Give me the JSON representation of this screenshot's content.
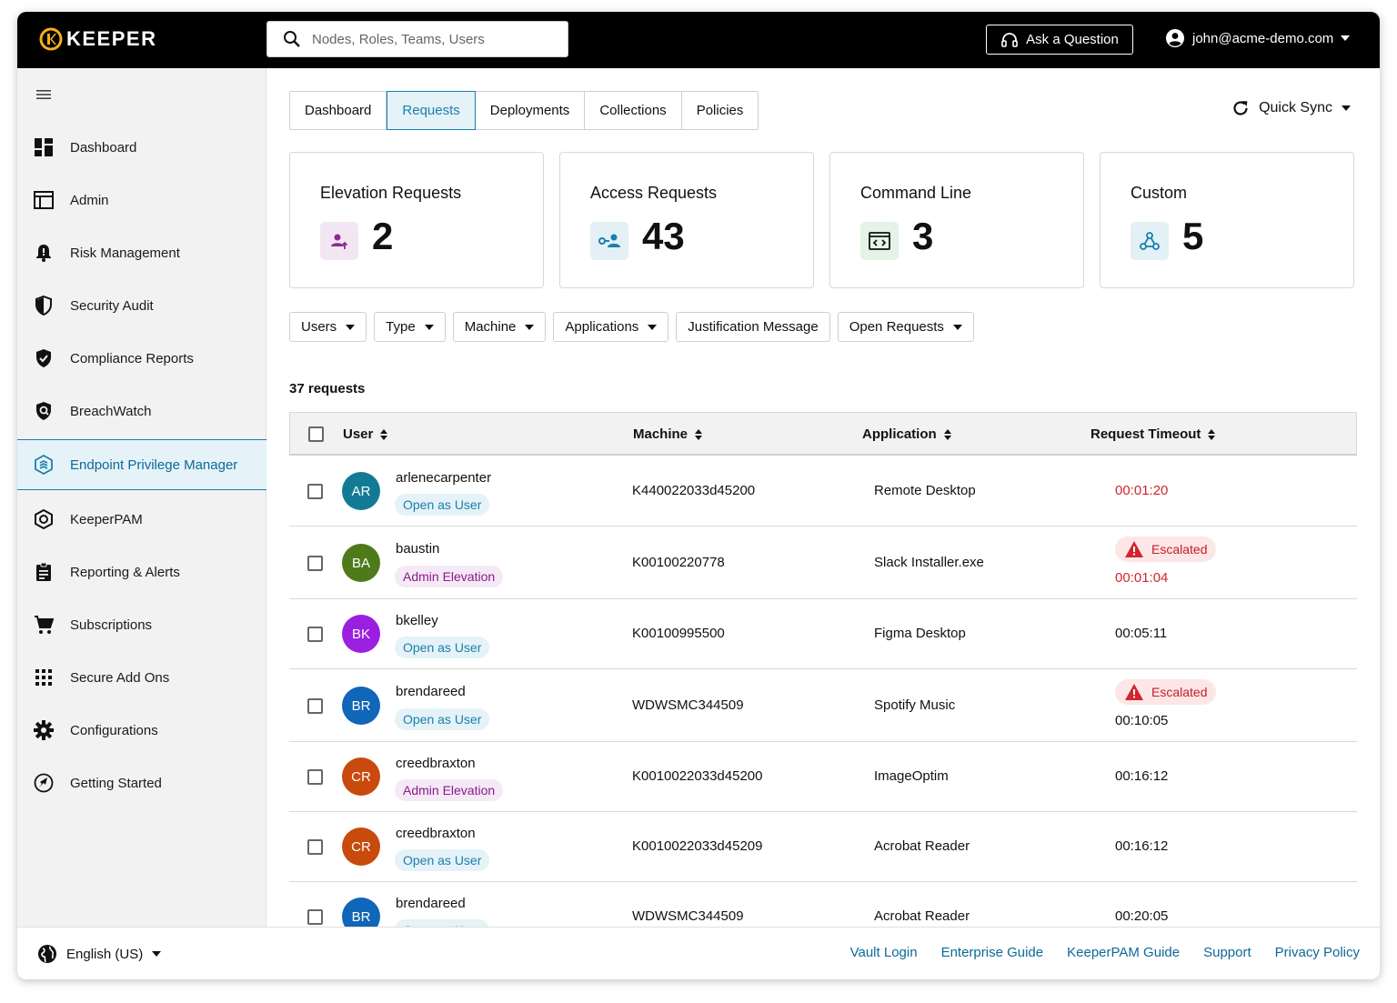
{
  "brand": {
    "name": "KEEPER",
    "accent": "#f3b01c"
  },
  "search": {
    "placeholder": "Nodes, Roles, Teams, Users"
  },
  "header": {
    "ask_label": "Ask a Question",
    "user_email": "john@acme-demo.com"
  },
  "sidebar": {
    "items": [
      {
        "label": "Dashboard",
        "icon": "dashboard-icon"
      },
      {
        "label": "Admin",
        "icon": "admin-icon"
      },
      {
        "label": "Risk Management",
        "icon": "bell-icon"
      },
      {
        "label": "Security Audit",
        "icon": "shield-icon"
      },
      {
        "label": "Compliance Reports",
        "icon": "shield-check-icon"
      },
      {
        "label": "BreachWatch",
        "icon": "breachwatch-icon"
      },
      {
        "label": "Endpoint Privilege Manager",
        "icon": "epm-icon",
        "active": true
      },
      {
        "label": "KeeperPAM",
        "icon": "keeperpam-icon"
      },
      {
        "label": "Reporting & Alerts",
        "icon": "clipboard-icon"
      },
      {
        "label": "Subscriptions",
        "icon": "cart-icon"
      },
      {
        "label": "Secure Add Ons",
        "icon": "grid-icon"
      },
      {
        "label": "Configurations",
        "icon": "gear-icon"
      },
      {
        "label": "Getting Started",
        "icon": "rocket-icon"
      }
    ]
  },
  "tabs": [
    "Dashboard",
    "Requests",
    "Deployments",
    "Collections",
    "Policies"
  ],
  "active_tab": "Requests",
  "quick_sync_label": "Quick Sync",
  "cards": [
    {
      "title": "Elevation Requests",
      "count": "2",
      "icon": "elevation-icon",
      "bg": "#f3e6f3",
      "fg": "#8a2d8a"
    },
    {
      "title": "Access Requests",
      "count": "43",
      "icon": "access-icon",
      "bg": "#e3f0f6",
      "fg": "#1a7fae"
    },
    {
      "title": "Command Line",
      "count": "3",
      "icon": "terminal-icon",
      "bg": "#e4f3e6",
      "fg": "#1f6e2c"
    },
    {
      "title": "Custom",
      "count": "5",
      "icon": "custom-icon",
      "bg": "#e3f0f6",
      "fg": "#1a7fae"
    }
  ],
  "filters": [
    "Users",
    "Type",
    "Machine",
    "Applications",
    "Justification Message",
    "Open Requests"
  ],
  "request_count": "37 requests",
  "table": {
    "columns": [
      "User",
      "Machine",
      "Application",
      "Request Timeout"
    ],
    "rows": [
      {
        "initials": "AR",
        "color": "#137a96",
        "user": "arlenecarpenter",
        "role": "Open as User",
        "machine": "K440022033d45200",
        "app": "Remote Desktop",
        "timeout": "00:01:20",
        "escalated": false,
        "red": true
      },
      {
        "initials": "BA",
        "color": "#4e7a1a",
        "user": "baustin",
        "role": "Admin Elevation",
        "machine": "K00100220778",
        "app": "Slack Installer.exe",
        "timeout": "00:01:04",
        "escalated": true,
        "red": true
      },
      {
        "initials": "BK",
        "color": "#9b1fe0",
        "user": "bkelley",
        "role": "Open as User",
        "machine": "K00100995500",
        "app": "Figma Desktop",
        "timeout": "00:05:11",
        "escalated": false,
        "red": false
      },
      {
        "initials": "BR",
        "color": "#1066b8",
        "user": "brendareed",
        "role": "Open as User",
        "machine": "WDWSMC344509",
        "app": "Spotify Music",
        "timeout": "00:10:05",
        "escalated": true,
        "red": false
      },
      {
        "initials": "CR",
        "color": "#c84a0c",
        "user": "creedbraxton",
        "role": "Admin Elevation",
        "machine": "K0010022033d45200",
        "app": "ImageOptim",
        "timeout": "00:16:12",
        "escalated": false,
        "red": false
      },
      {
        "initials": "CR",
        "color": "#c84a0c",
        "user": "creedbraxton",
        "role": "Open as User",
        "machine": "K0010022033d45209",
        "app": "Acrobat Reader",
        "timeout": "00:16:12",
        "escalated": false,
        "red": false
      },
      {
        "initials": "BR",
        "color": "#1066b8",
        "user": "brendareed",
        "role": "Open as User",
        "machine": "WDWSMC344509",
        "app": "Acrobat Reader",
        "timeout": "00:20:05",
        "escalated": false,
        "red": false
      }
    ],
    "escalated_label": "Escalated"
  },
  "footer": {
    "language": "English (US)",
    "links": [
      "Vault Login",
      "Enterprise Guide",
      "KeeperPAM Guide",
      "Support",
      "Privacy Policy"
    ]
  }
}
